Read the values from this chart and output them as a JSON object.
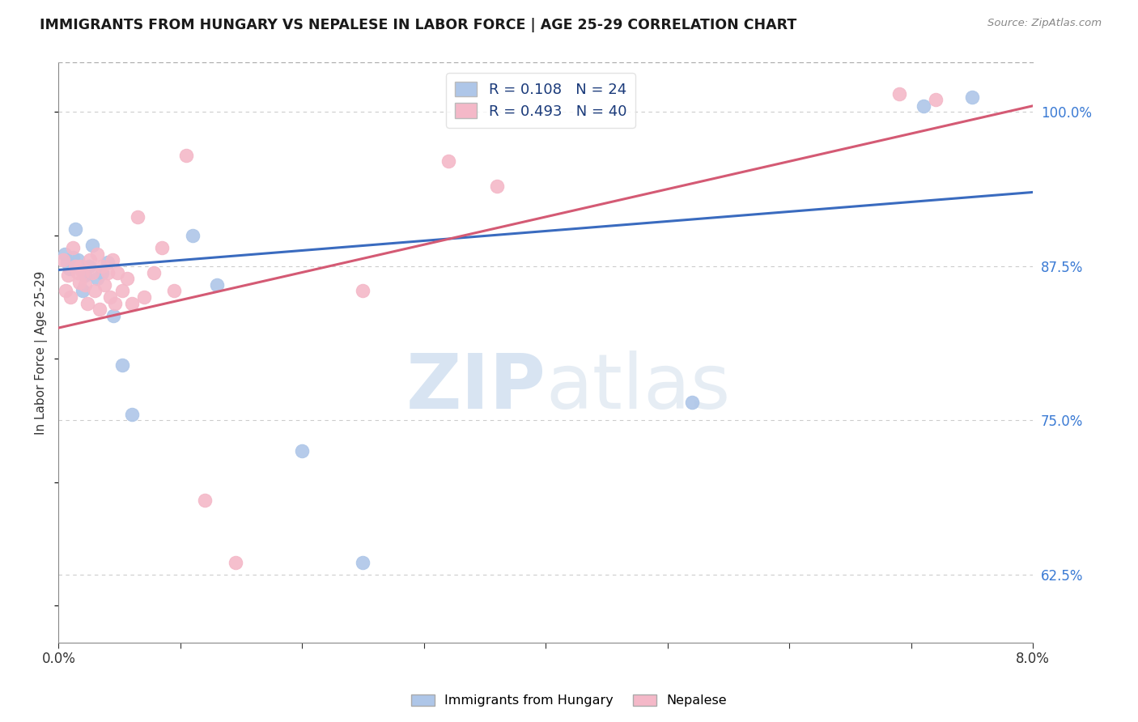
{
  "title": "IMMIGRANTS FROM HUNGARY VS NEPALESE IN LABOR FORCE | AGE 25-29 CORRELATION CHART",
  "source": "Source: ZipAtlas.com",
  "ylabel": "In Labor Force | Age 25-29",
  "right_yticks": [
    62.5,
    75.0,
    87.5,
    100.0
  ],
  "xlim": [
    0.0,
    8.0
  ],
  "ylim": [
    57.0,
    104.0
  ],
  "blue_R": 0.108,
  "blue_N": 24,
  "pink_R": 0.493,
  "pink_N": 40,
  "blue_color": "#aec6e8",
  "pink_color": "#f4b8c8",
  "blue_line_color": "#3a6bbf",
  "pink_line_color": "#d45a74",
  "legend_label_blue": "Immigrants from Hungary",
  "legend_label_pink": "Nepalese",
  "watermark_zip": "ZIP",
  "watermark_atlas": "atlas",
  "blue_line_x0": 0.0,
  "blue_line_y0": 87.2,
  "blue_line_x1": 8.0,
  "blue_line_y1": 93.5,
  "pink_line_x0": 0.0,
  "pink_line_y0": 82.5,
  "pink_line_x1": 8.0,
  "pink_line_y1": 100.5,
  "blue_x": [
    0.05,
    0.07,
    0.09,
    0.12,
    0.14,
    0.16,
    0.18,
    0.2,
    0.22,
    0.25,
    0.28,
    0.32,
    0.36,
    0.4,
    0.45,
    0.52,
    0.6,
    1.1,
    1.3,
    2.0,
    2.5,
    5.2,
    7.1,
    7.5
  ],
  "blue_y": [
    88.5,
    87.8,
    87.3,
    88.2,
    90.5,
    88.0,
    87.5,
    85.5,
    86.8,
    87.5,
    89.2,
    86.5,
    87.0,
    87.8,
    83.5,
    79.5,
    75.5,
    90.0,
    86.0,
    72.5,
    63.5,
    76.5,
    100.5,
    101.2
  ],
  "pink_x": [
    0.04,
    0.06,
    0.08,
    0.1,
    0.12,
    0.14,
    0.16,
    0.17,
    0.18,
    0.2,
    0.22,
    0.24,
    0.26,
    0.28,
    0.3,
    0.32,
    0.34,
    0.36,
    0.38,
    0.4,
    0.42,
    0.44,
    0.46,
    0.48,
    0.52,
    0.56,
    0.6,
    0.65,
    0.7,
    0.78,
    0.85,
    0.95,
    1.05,
    1.2,
    1.45,
    2.5,
    3.2,
    3.6,
    6.9,
    7.2
  ],
  "pink_y": [
    88.0,
    85.5,
    86.8,
    85.0,
    89.0,
    87.5,
    87.0,
    86.2,
    87.5,
    87.0,
    86.0,
    84.5,
    88.0,
    87.0,
    85.5,
    88.5,
    84.0,
    87.5,
    86.0,
    87.0,
    85.0,
    88.0,
    84.5,
    87.0,
    85.5,
    86.5,
    84.5,
    91.5,
    85.0,
    87.0,
    89.0,
    85.5,
    96.5,
    68.5,
    63.5,
    85.5,
    96.0,
    94.0,
    101.5,
    101.0
  ]
}
